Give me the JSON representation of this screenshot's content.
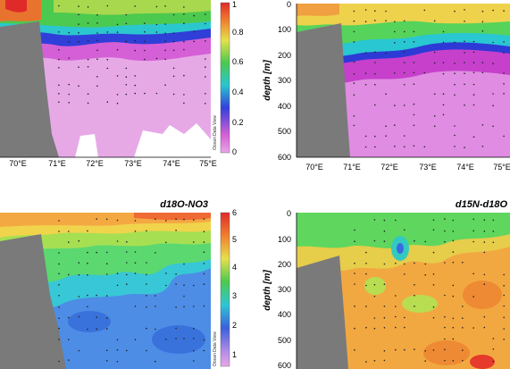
{
  "chart_data": [
    {
      "type": "heatmap",
      "title": "",
      "xlabel": "",
      "ylabel": "",
      "x_ticks": [
        "70°E",
        "71°E",
        "72°E",
        "73°E",
        "74°E",
        "75°E"
      ],
      "y_ticks": [],
      "colorbar_ticks": [
        "0",
        "0.2",
        "0.4",
        "0.6",
        "0.8",
        "1"
      ],
      "watermark": "Ocean Data View",
      "layers": [
        {
          "level": 0.1,
          "color": "#e39be0"
        },
        {
          "level": 0.7,
          "color": "#3cc45a"
        },
        {
          "level": 0.9,
          "color": "#f4ce4a"
        }
      ]
    },
    {
      "type": "heatmap",
      "title": "",
      "xlabel": "",
      "ylabel": "depth [m]",
      "x_ticks": [
        "70°E",
        "71°E",
        "72°E",
        "73°E",
        "74°E",
        "75°E"
      ],
      "y_ticks": [
        "0",
        "100",
        "200",
        "300",
        "400",
        "500",
        "600"
      ],
      "ylim": [
        0,
        600
      ],
      "layers": [
        {
          "level": 3,
          "color": "#dc5ce0"
        },
        {
          "level": 9,
          "color": "#55d45a"
        },
        {
          "level": 12,
          "color": "#f6ce4c"
        }
      ]
    },
    {
      "type": "heatmap",
      "title": "d18O-NO3",
      "xlabel": "",
      "ylabel": "",
      "x_ticks": [],
      "y_ticks": [],
      "colorbar_ticks": [
        "1",
        "2",
        "3",
        "4",
        "5",
        "6"
      ],
      "watermark": "Ocean Data View",
      "layers": [
        {
          "level": 1.5,
          "color": "#5a9ee8"
        },
        {
          "level": 3,
          "color": "#5bd870"
        },
        {
          "level": 5,
          "color": "#f4b04a"
        }
      ]
    },
    {
      "type": "heatmap",
      "title": "d15N-d18O",
      "xlabel": "",
      "ylabel": "depth [m]",
      "x_ticks": [],
      "y_ticks": [
        "0",
        "100",
        "200",
        "300",
        "400",
        "500",
        "600"
      ],
      "ylim": [
        0,
        600
      ],
      "layers": [
        {
          "level": 2,
          "color": "#5fd65e"
        },
        {
          "level": 5,
          "color": "#f4b84a"
        },
        {
          "level": 7,
          "color": "#f08a34"
        }
      ]
    }
  ],
  "colors": {
    "land": "#7a7a7a",
    "sample_dot": "#222222"
  }
}
